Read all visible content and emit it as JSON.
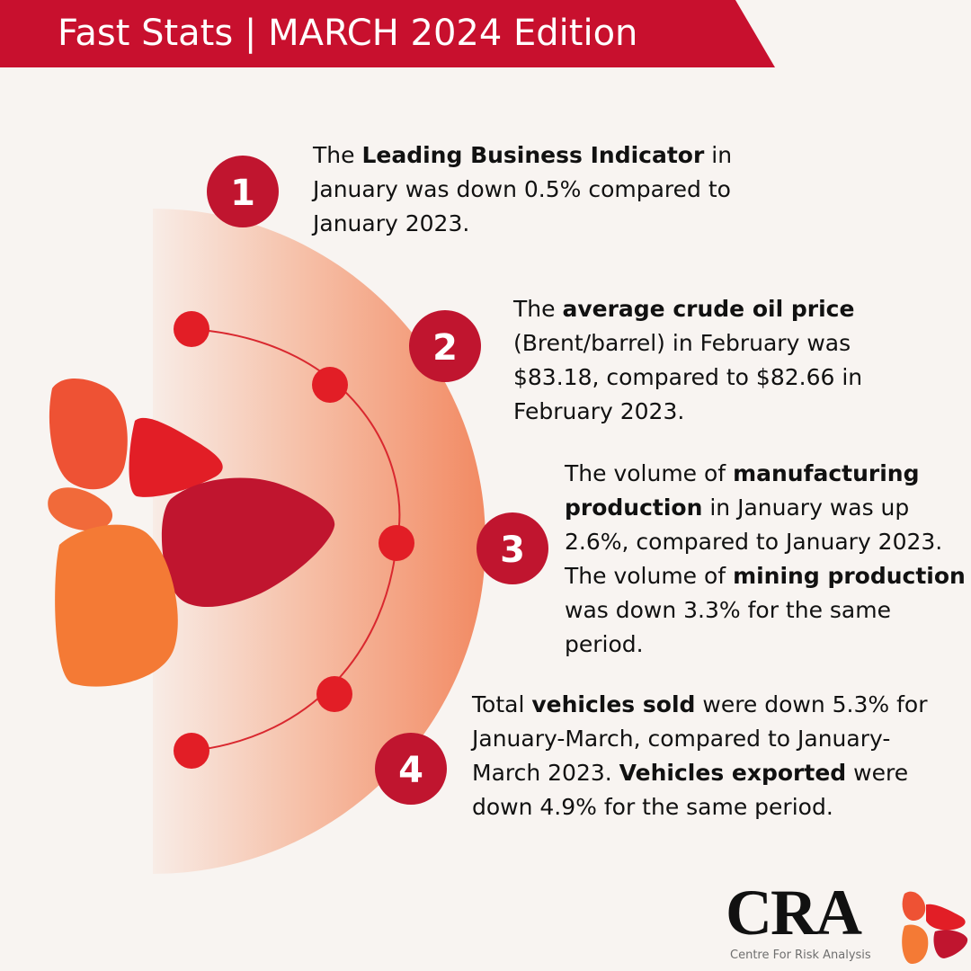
{
  "header": {
    "title": "Fast Stats | MARCH 2024 Edition"
  },
  "colors": {
    "banner": "#c8102e",
    "badge": "#c0152f",
    "node": "#e02020",
    "accent_orange": "#f26b3a",
    "background": "#f8f4f1"
  },
  "stats": [
    {
      "number": "1",
      "pre": "The ",
      "bold1": "Leading Business Indicator",
      "mid": " in January was down 0.5% compared to January 2023.",
      "bold2": "",
      "post": ""
    },
    {
      "number": "2",
      "pre": "The ",
      "bold1": "average crude oil price",
      "mid": " (Brent/barrel) in February was $83.18, compared to $82.66 in February 2023.",
      "bold2": "",
      "post": ""
    },
    {
      "number": "3",
      "pre": "The volume of ",
      "bold1": "manufacturing production",
      "mid": " in January was up 2.6%, compared to January 2023. The volume of ",
      "bold2": "mining production",
      "post": " was down 3.3% for the same period."
    },
    {
      "number": "4",
      "pre": "Total ",
      "bold1": "vehicles sold",
      "mid": " were down 5.3% for January-March, compared to January-March 2023. ",
      "bold2": "Vehicles exported",
      "post": " were down 4.9% for the same period."
    }
  ],
  "logo": {
    "wordmark": "CRA",
    "tagline": "Centre For Risk Analysis"
  }
}
